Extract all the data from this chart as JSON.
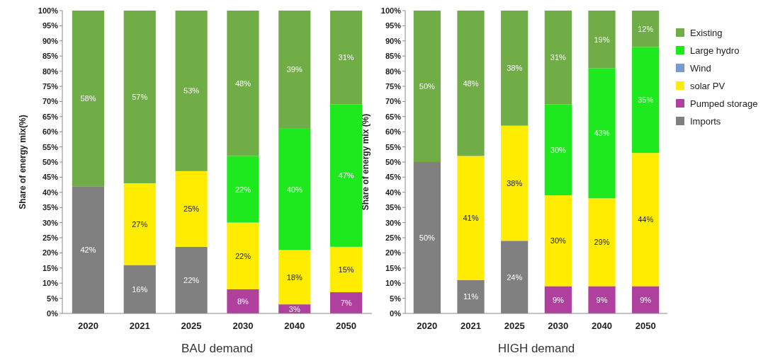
{
  "chart_data": [
    {
      "type": "bar",
      "stacked": true,
      "xlabel": "BAU demand",
      "ylabel": "Share of energy mix(%)",
      "categories": [
        "2020",
        "2021",
        "2025",
        "2030",
        "2040",
        "2050"
      ],
      "ylim": [
        0,
        100
      ],
      "yticks": [
        {
          "value": 0,
          "label": "0%"
        },
        {
          "value": 5,
          "label": "5%"
        },
        {
          "value": 10,
          "label": "10%"
        },
        {
          "value": 15,
          "label": "15%"
        },
        {
          "value": 20,
          "label": "20%"
        },
        {
          "value": 25,
          "label": "25%"
        },
        {
          "value": 30,
          "label": "30%"
        },
        {
          "value": 35,
          "label": "35%"
        },
        {
          "value": 40,
          "label": "40%"
        },
        {
          "value": 45,
          "label": "45%"
        },
        {
          "value": 50,
          "label": "50%"
        },
        {
          "value": 55,
          "label": "55%"
        },
        {
          "value": 60,
          "label": "60%"
        },
        {
          "value": 65,
          "label": "65%"
        },
        {
          "value": 70,
          "label": "70%"
        },
        {
          "value": 75,
          "label": "75%"
        },
        {
          "value": 80,
          "label": "80%"
        },
        {
          "value": 85,
          "label": "85%"
        },
        {
          "value": 90,
          "label": "90%"
        },
        {
          "value": 95,
          "label": "95%"
        },
        {
          "value": 100,
          "label": "100%"
        }
      ],
      "legend": false,
      "series": [
        {
          "color": "#808080",
          "values": [
            42,
            16,
            22,
            null,
            null,
            null
          ],
          "value_labels": [
            "42%",
            "16%",
            "22%",
            null,
            null,
            null
          ]
        },
        {
          "color": "#b0409e",
          "values": [
            null,
            null,
            null,
            8,
            3,
            7
          ],
          "value_labels": [
            null,
            null,
            null,
            "8%",
            "3%",
            "7%"
          ]
        },
        {
          "color": "#ffec00",
          "values": [
            null,
            27,
            25,
            22,
            18,
            15
          ],
          "value_labels": [
            null,
            "27%",
            "25%",
            "22%",
            "18%",
            "15%"
          ]
        },
        {
          "color": "#1ee81e",
          "values": [
            null,
            null,
            null,
            22,
            40,
            47
          ],
          "value_labels": [
            null,
            null,
            null,
            "22%",
            "40%",
            "47%"
          ]
        },
        {
          "color": "#70ad47",
          "values": [
            58,
            57,
            53,
            48,
            39,
            31
          ],
          "value_labels": [
            "58%",
            "57%",
            "53%",
            "48%",
            "39%",
            "31%"
          ]
        }
      ]
    },
    {
      "type": "bar",
      "stacked": true,
      "xlabel": "HIGH demand",
      "ylabel": "Share of energy mix (%)",
      "categories": [
        "2020",
        "2021",
        "2025",
        "2030",
        "2040",
        "2050"
      ],
      "ylim": [
        0,
        100
      ],
      "yticks": [
        {
          "value": 0,
          "label": "0%"
        },
        {
          "value": 5,
          "label": "5%"
        },
        {
          "value": 10,
          "label": "10%"
        },
        {
          "value": 15,
          "label": "15%"
        },
        {
          "value": 20,
          "label": "20%"
        },
        {
          "value": 25,
          "label": "25%"
        },
        {
          "value": 30,
          "label": "30%"
        },
        {
          "value": 35,
          "label": "35%"
        },
        {
          "value": 40,
          "label": "40%"
        },
        {
          "value": 45,
          "label": "45%"
        },
        {
          "value": 50,
          "label": "50%"
        },
        {
          "value": 55,
          "label": "55%"
        },
        {
          "value": 60,
          "label": "60%"
        },
        {
          "value": 65,
          "label": "65%"
        },
        {
          "value": 70,
          "label": "70%"
        },
        {
          "value": 75,
          "label": "75%"
        },
        {
          "value": 80,
          "label": "80%"
        },
        {
          "value": 85,
          "label": "85%"
        },
        {
          "value": 90,
          "label": "90%"
        },
        {
          "value": 95,
          "label": "95%"
        },
        {
          "value": 100,
          "label": "100%"
        }
      ],
      "legend": "right",
      "series": [
        {
          "name": "Imports",
          "color": "#808080",
          "values": [
            50,
            11,
            24,
            null,
            null,
            null
          ],
          "value_labels": [
            "50%",
            "11%",
            "24%",
            null,
            null,
            null
          ]
        },
        {
          "name": "Pumped storage",
          "color": "#b0409e",
          "values": [
            null,
            null,
            null,
            9,
            9,
            9
          ],
          "value_labels": [
            null,
            null,
            null,
            "9%",
            "9%",
            "9%"
          ]
        },
        {
          "name": "solar PV",
          "color": "#ffec00",
          "values": [
            null,
            41,
            38,
            30,
            29,
            44
          ],
          "value_labels": [
            null,
            "41%",
            "38%",
            "30%",
            "29%",
            "44%"
          ]
        },
        {
          "name": "Wind",
          "color": "#7b9bd0",
          "values": [
            null,
            null,
            null,
            null,
            null,
            null
          ]
        },
        {
          "name": "Large hydro",
          "color": "#1ee81e",
          "values": [
            null,
            null,
            null,
            30,
            43,
            35
          ],
          "value_labels": [
            null,
            null,
            null,
            "30%",
            "43%",
            "35%"
          ]
        },
        {
          "name": "Existing",
          "color": "#70ad47",
          "values": [
            50,
            48,
            38,
            31,
            19,
            12
          ],
          "value_labels": [
            "50%",
            "48%",
            "38%",
            "31%",
            "19%",
            "12%"
          ]
        }
      ]
    }
  ]
}
